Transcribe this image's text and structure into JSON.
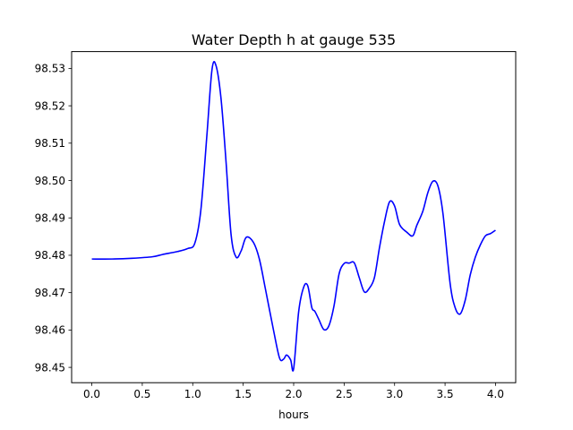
{
  "chart_data": {
    "type": "line",
    "title": "Water Depth h at gauge 535",
    "xlabel": "hours",
    "ylabel": "",
    "xlim": [
      -0.2,
      4.2
    ],
    "ylim": [
      98.4459,
      98.5345
    ],
    "xticks": [
      0.0,
      0.5,
      1.0,
      1.5,
      2.0,
      2.5,
      3.0,
      3.5,
      4.0
    ],
    "xtick_labels": [
      "0.0",
      "0.5",
      "1.0",
      "1.5",
      "2.0",
      "2.5",
      "3.0",
      "3.5",
      "4.0"
    ],
    "yticks": [
      98.45,
      98.46,
      98.47,
      98.48,
      98.49,
      98.5,
      98.51,
      98.52,
      98.53
    ],
    "ytick_labels": [
      "98.45",
      "98.46",
      "98.47",
      "98.48",
      "98.49",
      "98.50",
      "98.51",
      "98.52",
      "98.53"
    ],
    "grid": false,
    "series": [
      {
        "color": "#0000ff",
        "x": [
          0.0,
          0.2,
          0.4,
          0.6,
          0.7,
          0.85,
          0.95,
          1.02,
          1.08,
          1.14,
          1.19,
          1.23,
          1.28,
          1.33,
          1.38,
          1.43,
          1.48,
          1.53,
          1.6,
          1.66,
          1.72,
          1.8,
          1.86,
          1.9,
          1.93,
          1.97,
          2.0,
          2.05,
          2.1,
          2.14,
          2.18,
          2.21,
          2.25,
          2.3,
          2.35,
          2.4,
          2.45,
          2.5,
          2.55,
          2.6,
          2.65,
          2.7,
          2.75,
          2.8,
          2.85,
          2.9,
          2.95,
          3.0,
          3.05,
          3.12,
          3.18,
          3.22,
          3.28,
          3.33,
          3.38,
          3.43,
          3.48,
          3.55,
          3.6,
          3.65,
          3.7,
          3.75,
          3.8,
          3.85,
          3.9,
          3.95,
          4.0
        ],
        "y": [
          98.479,
          98.479,
          98.4792,
          98.4796,
          98.4802,
          98.481,
          98.4818,
          98.4832,
          98.492,
          98.512,
          98.5295,
          98.5308,
          98.522,
          98.505,
          98.4855,
          98.4795,
          98.4812,
          98.4848,
          98.4835,
          98.479,
          98.471,
          98.46,
          98.4525,
          98.4522,
          98.4533,
          98.452,
          98.4497,
          98.465,
          98.4715,
          98.4718,
          98.466,
          98.465,
          98.4628,
          98.4601,
          98.4612,
          98.4665,
          98.475,
          98.4778,
          98.4779,
          98.478,
          98.474,
          98.4702,
          98.4712,
          98.474,
          98.482,
          98.489,
          98.4943,
          98.4932,
          98.4882,
          98.4862,
          98.4852,
          98.488,
          98.4918,
          98.4968,
          98.4998,
          98.4985,
          98.491,
          98.4725,
          98.466,
          98.4643,
          98.468,
          98.4748,
          98.4795,
          98.4828,
          98.4852,
          98.4858,
          98.4867
        ]
      }
    ]
  }
}
